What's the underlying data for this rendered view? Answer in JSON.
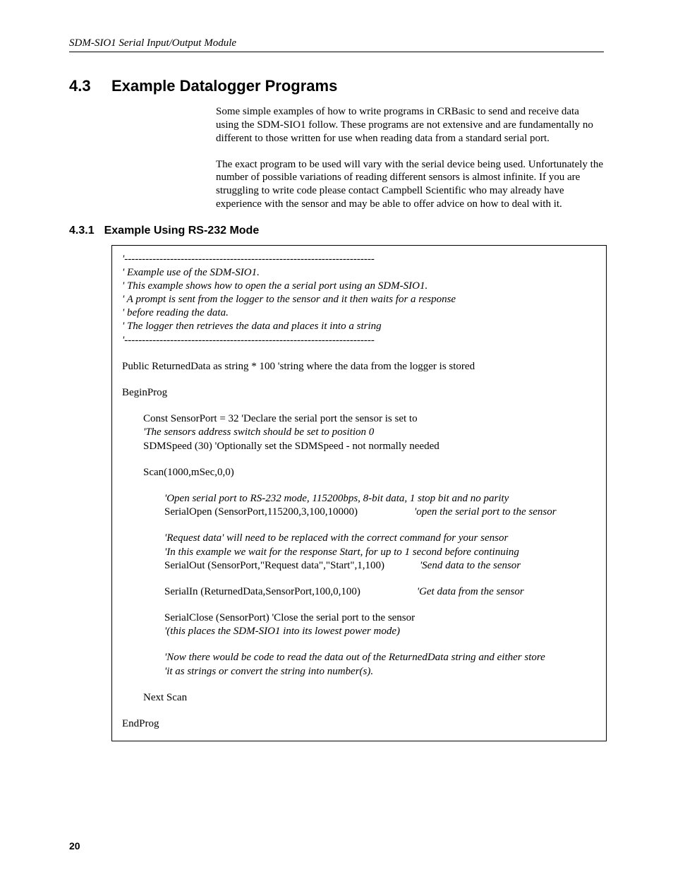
{
  "header": {
    "running": "SDM-SIO1 Serial Input/Output Module"
  },
  "section": {
    "num": "4.3",
    "title": "Example Datalogger Programs",
    "para1": "Some simple examples of how to write programs in CRBasic to send and receive data using the SDM-SIO1 follow. These programs are not extensive and are fundamentally no different to those written for use when reading data from a standard serial port.",
    "para2": "The exact program to be used will vary with the serial device being used. Unfortunately the number of possible variations of reading different sensors is almost infinite. If you are struggling to write code please contact Campbell Scientific who may already have experience with the sensor and may be able to offer advice on how to deal with it."
  },
  "subsection": {
    "num": "4.3.1",
    "title": "Example Using RS-232 Mode"
  },
  "code": {
    "rule": "'-----------------------------------------------------------------------",
    "c1": "' Example use of the SDM-SIO1.",
    "c2": "' This example shows how to open the a serial port using an SDM-SIO1.",
    "c3": "' A prompt is sent from the logger to the sensor and it then waits for a response",
    "c4": "' before reading the data.",
    "c5": "' The logger then retrieves the data and places it into a string",
    "pubdecl": "Public ReturnedData as string * 100 'string where the data from the logger is stored",
    "beginprog": "BeginProg",
    "const": "Const SensorPort = 32 'Declare the serial port the sensor is set to",
    "constc": "'The sensors address switch should be set to position 0",
    "sdms": "SDMSpeed (30) 'Optionally set the SDMSpeed - not normally needed",
    "scan": "Scan(1000,mSec,0,0)",
    "openc": "'Open serial port to RS-232 mode, 115200bps, 8-bit data, 1 stop bit and no parity",
    "open": "SerialOpen (SensorPort,115200,3,100,10000)",
    "open_r": "'open the serial port to the sensor",
    "reqc1": "'Request data' will need to be replaced with the correct command for your sensor",
    "reqc2": "'In this example we wait for the response Start, for up to 1 second before continuing",
    "out": "SerialOut (SensorPort,\"Request data\",\"Start\",1,100)",
    "out_r": "'Send data to the sensor",
    "in": "SerialIn (ReturnedData,SensorPort,100,0,100)",
    "in_r": "'Get data from the sensor",
    "close": "SerialClose (SensorPort) 'Close the serial port to the sensor",
    "close_c": "'(this places the SDM-SIO1 into its lowest power mode)",
    "note1": "'Now there would be code to read the data out of the ReturnedData string and either store",
    "note2": "'it as strings or convert the string into number(s).",
    "nextscan": "Next Scan",
    "endprog": "EndProg"
  },
  "footer": {
    "page": "20"
  }
}
